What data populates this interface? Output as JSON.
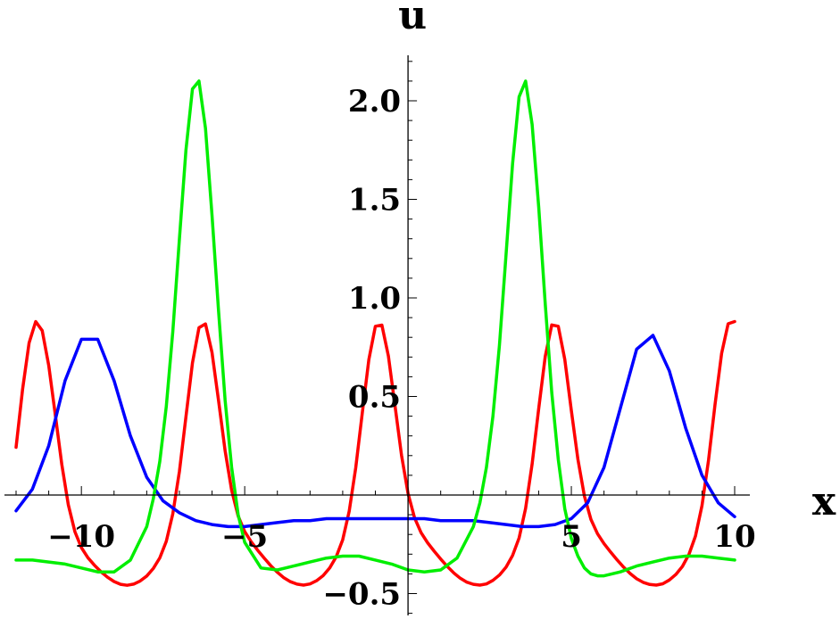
{
  "chart_data": {
    "type": "line",
    "xlabel": "x",
    "ylabel": "u",
    "xlim": [
      -12,
      10
    ],
    "ylim": [
      -0.6,
      2.25
    ],
    "xticks": [
      -10,
      -5,
      5,
      10
    ],
    "xtick_labels": [
      "−10",
      "−5",
      "5",
      "10"
    ],
    "yticks": [
      -0.5,
      0.5,
      1.0,
      1.5,
      2.0
    ],
    "ytick_labels": [
      "−0.5",
      "0.5",
      "1.0",
      "1.5",
      "2.0"
    ],
    "grid": false,
    "series": [
      {
        "color": "#ff0000",
        "x": [
          -12,
          -11.8,
          -11.6,
          -11.4,
          -11.2,
          -11.0,
          -10.8,
          -10.6,
          -10.4,
          -10.2,
          -10.0,
          -9.8,
          -9.6,
          -9.4,
          -9.2,
          -9.0,
          -8.8,
          -8.6,
          -8.4,
          -8.2,
          -8.0,
          -7.8,
          -7.6,
          -7.4,
          -7.2,
          -7.0,
          -6.8,
          -6.6,
          -6.4,
          -6.2,
          -6.0,
          -5.8,
          -5.6,
          -5.4,
          -5.2,
          -5.0,
          -4.8,
          -4.6,
          -4.4,
          -4.2,
          -4.0,
          -3.8,
          -3.6,
          -3.4,
          -3.2,
          -3.0,
          -2.8,
          -2.6,
          -2.4,
          -2.2,
          -2.0,
          -1.8,
          -1.6,
          -1.4,
          -1.2,
          -1.0,
          -0.8,
          -0.6,
          -0.4,
          -0.2,
          0.0,
          0.2,
          0.4,
          0.6,
          0.8,
          1.0,
          1.2,
          1.4,
          1.6,
          1.8,
          2.0,
          2.2,
          2.4,
          2.6,
          2.8,
          3.0,
          3.2,
          3.4,
          3.6,
          3.8,
          4.0,
          4.2,
          4.4,
          4.6,
          4.8,
          5.0,
          5.2,
          5.4,
          5.6,
          5.8,
          6.0,
          6.2,
          6.4,
          6.6,
          6.8,
          7.0,
          7.2,
          7.4,
          7.6,
          7.8,
          8.0,
          8.2,
          8.4,
          8.6,
          8.8,
          9.0,
          9.2,
          9.4,
          9.6,
          9.8,
          10.0
        ],
        "y": [
          0.242,
          0.536,
          0.772,
          0.88,
          0.834,
          0.657,
          0.409,
          0.156,
          -0.049,
          -0.186,
          -0.267,
          -0.318,
          -0.356,
          -0.389,
          -0.417,
          -0.439,
          -0.453,
          -0.458,
          -0.452,
          -0.436,
          -0.411,
          -0.373,
          -0.319,
          -0.235,
          -0.095,
          0.12,
          0.397,
          0.67,
          0.849,
          0.868,
          0.723,
          0.477,
          0.224,
          0.024,
          -0.107,
          -0.185,
          -0.238,
          -0.281,
          -0.321,
          -0.359,
          -0.392,
          -0.42,
          -0.44,
          -0.452,
          -0.457,
          -0.451,
          -0.435,
          -0.409,
          -0.37,
          -0.314,
          -0.227,
          -0.082,
          0.138,
          0.418,
          0.687,
          0.856,
          0.862,
          0.705,
          0.453,
          0.202,
          0.008,
          -0.116,
          -0.191,
          -0.242,
          -0.285,
          -0.325,
          -0.362,
          -0.395,
          -0.422,
          -0.442,
          -0.453,
          -0.457,
          -0.451,
          -0.433,
          -0.406,
          -0.366,
          -0.307,
          -0.218,
          -0.068,
          0.157,
          0.439,
          0.703,
          0.863,
          0.856,
          0.688,
          0.43,
          0.181,
          -0.006,
          -0.124,
          -0.196,
          -0.246,
          -0.289,
          -0.329,
          -0.366,
          -0.398,
          -0.425,
          -0.443,
          -0.454,
          -0.457,
          -0.45,
          -0.431,
          -0.403,
          -0.362,
          -0.301,
          -0.208,
          -0.054,
          0.176,
          0.459,
          0.719,
          0.869,
          0.88
        ]
      },
      {
        "color": "#0000ff",
        "x": [
          -12,
          -11.5,
          -11.0,
          -10.5,
          -10.0,
          -9.5,
          -9.0,
          -8.5,
          -8.0,
          -7.5,
          -7.0,
          -6.5,
          -6.0,
          -5.5,
          -5.0,
          -4.5,
          -4.0,
          -3.5,
          -3.0,
          -2.5,
          -2.0,
          -1.5,
          -1.0,
          -0.5,
          0.0,
          0.5,
          1.0,
          1.5,
          2.0,
          2.5,
          3.0,
          3.5,
          4.0,
          4.5,
          5.0,
          5.5,
          6.0,
          6.5,
          7.0,
          7.5,
          8.0,
          8.5,
          9.0,
          9.5,
          10.0
        ],
        "y": [
          -0.08,
          0.03,
          0.25,
          0.58,
          0.79,
          0.79,
          0.58,
          0.3,
          0.09,
          -0.03,
          -0.09,
          -0.13,
          -0.15,
          -0.16,
          -0.16,
          -0.15,
          -0.14,
          -0.13,
          -0.13,
          -0.12,
          -0.12,
          -0.12,
          -0.12,
          -0.12,
          -0.12,
          -0.12,
          -0.13,
          -0.13,
          -0.13,
          -0.14,
          -0.15,
          -0.16,
          -0.16,
          -0.15,
          -0.12,
          -0.04,
          0.14,
          0.44,
          0.74,
          0.81,
          0.63,
          0.34,
          0.1,
          -0.04,
          -0.11
        ]
      },
      {
        "color": "#00ee00",
        "x": [
          -12,
          -11.5,
          -11.0,
          -10.5,
          -10.0,
          -9.5,
          -9.0,
          -8.5,
          -8.0,
          -7.8,
          -7.6,
          -7.4,
          -7.2,
          -7.0,
          -6.8,
          -6.6,
          -6.4,
          -6.2,
          -6.0,
          -5.8,
          -5.6,
          -5.4,
          -5.2,
          -5.0,
          -4.5,
          -4.0,
          -3.5,
          -3.0,
          -2.5,
          -2.0,
          -1.5,
          -1.0,
          -0.5,
          0.0,
          0.5,
          1.0,
          1.5,
          2.0,
          2.2,
          2.4,
          2.6,
          2.8,
          3.0,
          3.2,
          3.4,
          3.6,
          3.8,
          4.0,
          4.2,
          4.4,
          4.6,
          4.8,
          5.0,
          5.2,
          5.4,
          5.6,
          5.8,
          6.0,
          6.5,
          7.0,
          7.5,
          8.0,
          8.5,
          9.0,
          9.5,
          10.0
        ],
        "y": [
          -0.33,
          -0.33,
          -0.34,
          -0.35,
          -0.37,
          -0.39,
          -0.39,
          -0.33,
          -0.16,
          -0.02,
          0.17,
          0.45,
          0.83,
          1.3,
          1.75,
          2.06,
          2.1,
          1.86,
          1.42,
          0.93,
          0.48,
          0.14,
          -0.1,
          -0.24,
          -0.37,
          -0.38,
          -0.36,
          -0.34,
          -0.32,
          -0.31,
          -0.31,
          -0.33,
          -0.35,
          -0.38,
          -0.39,
          -0.38,
          -0.32,
          -0.16,
          -0.04,
          0.14,
          0.4,
          0.76,
          1.22,
          1.68,
          2.02,
          2.1,
          1.88,
          1.46,
          0.97,
          0.52,
          0.18,
          -0.07,
          -0.22,
          -0.31,
          -0.37,
          -0.4,
          -0.41,
          -0.41,
          -0.39,
          -0.36,
          -0.34,
          -0.32,
          -0.31,
          -0.31,
          -0.32,
          -0.33
        ]
      }
    ]
  }
}
